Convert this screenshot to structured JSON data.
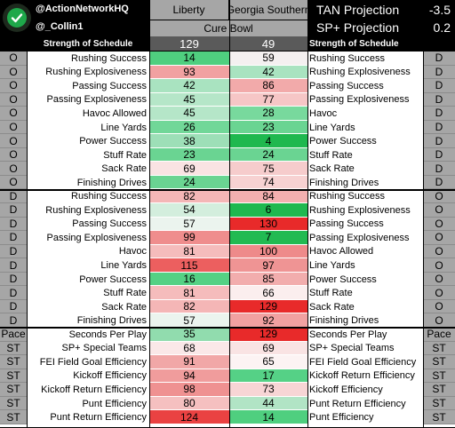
{
  "header": {
    "handle1": "@ActionNetworkHQ",
    "handle2": "@_Collin1",
    "team1": "Liberty",
    "team2": "Georgia Southern",
    "bowl": "Cure Bowl",
    "sos_label_left": "Strength of Schedule",
    "sos_label_right": "Strength of Schedule",
    "sos1": "129",
    "sos2": "49",
    "tan_label": "TAN Projection",
    "tan_value": "-3.5",
    "sp_label": "SP+ Projection",
    "sp_value": "0.2"
  },
  "rows": [
    {
      "cat": "O",
      "left": "Rushing Success",
      "v1": "14",
      "v2": "59",
      "right": "Rushing Success",
      "cat2": "D",
      "c1": "#4fcf7f",
      "c2": "#f4f0f0"
    },
    {
      "cat": "O",
      "left": "Rushing Explosiveness",
      "v1": "93",
      "v2": "42",
      "right": "Rushing Explosiveness",
      "cat2": "D",
      "c1": "#f1a1a1",
      "c2": "#a9e3c0"
    },
    {
      "cat": "O",
      "left": "Passing Success",
      "v1": "42",
      "v2": "86",
      "right": "Passing Success",
      "cat2": "D",
      "c1": "#a9e3c0",
      "c2": "#f2aaaa"
    },
    {
      "cat": "O",
      "left": "Passing Explosiveness",
      "v1": "45",
      "v2": "77",
      "right": "Passing Explosiveness",
      "cat2": "D",
      "c1": "#b5e6c8",
      "c2": "#f6c6c6"
    },
    {
      "cat": "O",
      "left": "Havoc Allowed",
      "v1": "45",
      "v2": "28",
      "right": "Havoc",
      "cat2": "D",
      "c1": "#b5e6c8",
      "c2": "#78d99d"
    },
    {
      "cat": "O",
      "left": "Line Yards",
      "v1": "26",
      "v2": "23",
      "right": "Line Yards",
      "cat2": "D",
      "c1": "#71d798",
      "c2": "#6ad492"
    },
    {
      "cat": "O",
      "left": "Power Success",
      "v1": "38",
      "v2": "4",
      "right": "Power Success",
      "cat2": "D",
      "c1": "#9ddfb7",
      "c2": "#1fb84f"
    },
    {
      "cat": "O",
      "left": "Stuff Rate",
      "v1": "23",
      "v2": "24",
      "right": "Stuff Rate",
      "cat2": "D",
      "c1": "#6ad492",
      "c2": "#6ad492"
    },
    {
      "cat": "O",
      "left": "Sack Rate",
      "v1": "69",
      "v2": "75",
      "right": "Sack Rate",
      "cat2": "D",
      "c1": "#f9e3e3",
      "c2": "#f6cccc"
    },
    {
      "cat": "O",
      "left": "Finishing Drives",
      "v1": "24",
      "v2": "74",
      "right": "Finishing Drives",
      "cat2": "D",
      "c1": "#6ad492",
      "c2": "#f7d2d2"
    },
    {
      "cat": "D",
      "left": "Rushing Success",
      "v1": "82",
      "v2": "84",
      "right": "Rushing Success",
      "cat2": "O",
      "c1": "#f4b6b6",
      "c2": "#f3b0b0"
    },
    {
      "cat": "D",
      "left": "Rushing Explosiveness",
      "v1": "54",
      "v2": "6",
      "right": "Rushing Explosiveness",
      "cat2": "O",
      "c1": "#d3eedd",
      "c2": "#1fb84f"
    },
    {
      "cat": "D",
      "left": "Passing Success",
      "v1": "57",
      "v2": "130",
      "right": "Passing Success",
      "cat2": "O",
      "c1": "#ebf4ee",
      "c2": "#e82a2a"
    },
    {
      "cat": "D",
      "left": "Passing Explosiveness",
      "v1": "99",
      "v2": "7",
      "right": "Passing Explosiveness",
      "cat2": "O",
      "c1": "#ef8d8d",
      "c2": "#22ba52"
    },
    {
      "cat": "D",
      "left": "Havoc",
      "v1": "81",
      "v2": "100",
      "right": "Havoc Allowed",
      "cat2": "O",
      "c1": "#f5bcbc",
      "c2": "#ee8a8a"
    },
    {
      "cat": "D",
      "left": "Line Yards",
      "v1": "115",
      "v2": "97",
      "right": "Line Yards",
      "cat2": "O",
      "c1": "#ec5f5f",
      "c2": "#ef9494"
    },
    {
      "cat": "D",
      "left": "Power Success",
      "v1": "16",
      "v2": "85",
      "right": "Power Success",
      "cat2": "O",
      "c1": "#54d184",
      "c2": "#f2adad"
    },
    {
      "cat": "D",
      "left": "Stuff Rate",
      "v1": "81",
      "v2": "66",
      "right": "Stuff Rate",
      "cat2": "O",
      "c1": "#f5bcbc",
      "c2": "#fbeeee"
    },
    {
      "cat": "D",
      "left": "Sack Rate",
      "v1": "82",
      "v2": "129",
      "right": "Sack Rate",
      "cat2": "O",
      "c1": "#f4b6b6",
      "c2": "#e82a2a"
    },
    {
      "cat": "D",
      "left": "Finishing Drives",
      "v1": "57",
      "v2": "92",
      "right": "Finishing Drives",
      "cat2": "O",
      "c1": "#ebf4ee",
      "c2": "#f1a1a1"
    },
    {
      "cat": "Pace",
      "left": "Seconds Per Play",
      "v1": "35",
      "v2": "129",
      "right": "Seconds Per Play",
      "cat2": "Pace",
      "c1": "#91dcae",
      "c2": "#e82a2a"
    },
    {
      "cat": "ST",
      "left": "SP+ Special Teams",
      "v1": "68",
      "v2": "69",
      "right": "SP+ Special Teams",
      "cat2": "ST",
      "c1": "#fae8e8",
      "c2": "#f9e3e3"
    },
    {
      "cat": "ST",
      "left": "FEI Field Goal Efficiency",
      "v1": "91",
      "v2": "65",
      "right": "FEI Field Goal Efficiency",
      "cat2": "ST",
      "c1": "#f1a7a7",
      "c2": "#fcf3f3"
    },
    {
      "cat": "ST",
      "left": "Kickoff Efficiency",
      "v1": "94",
      "v2": "17",
      "right": "Kickoff Return Efficiency",
      "cat2": "ST",
      "c1": "#f09c9c",
      "c2": "#55d186"
    },
    {
      "cat": "ST",
      "left": "Kickoff Return Efficiency",
      "v1": "98",
      "v2": "73",
      "right": "Kickoff Efficiency",
      "cat2": "ST",
      "c1": "#ef9191",
      "c2": "#f7d5d5"
    },
    {
      "cat": "ST",
      "left": "Punt Efficiency",
      "v1": "80",
      "v2": "44",
      "right": "Punt Return Efficiency",
      "cat2": "ST",
      "c1": "#f5c0c0",
      "c2": "#b1e4c5"
    },
    {
      "cat": "ST",
      "left": "Punt Return Efficiency",
      "v1": "124",
      "v2": "14",
      "right": "Punt Efficiency",
      "cat2": "ST",
      "c1": "#ea4242",
      "c2": "#4fcf7f"
    }
  ]
}
